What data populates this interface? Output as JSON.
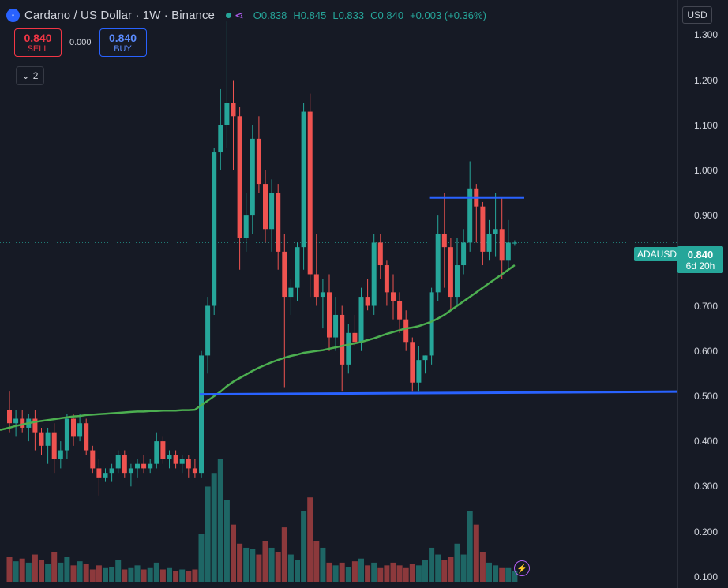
{
  "header": {
    "title": "Cardano / US Dollar · 1W · Binance",
    "ohlc": {
      "o_label": "O",
      "o": "0.838",
      "h_label": "H",
      "h": "0.845",
      "l_label": "L",
      "l": "0.833",
      "c_label": "C",
      "c": "0.840",
      "change": "+0.003 (+0.36%)"
    }
  },
  "trade": {
    "sell_price": "0.840",
    "sell_label": "SELL",
    "spread": "0.000",
    "buy_price": "0.840",
    "buy_label": "BUY"
  },
  "indicator_toggle": {
    "label": "2"
  },
  "currency": "USD",
  "symbol_tag": "ADAUSD",
  "price_label": {
    "price": "0.840",
    "countdown": "6d 20h"
  },
  "icons": {
    "symbol": "circle-logo-icon",
    "share": "share-icon",
    "bolt": "bolt-icon"
  },
  "colors": {
    "up": "#26a69a",
    "down": "#ef5350",
    "ma": "#4caf50",
    "lines": "#2962ff",
    "bg": "#161a25"
  },
  "chart_data": {
    "type": "candlestick",
    "price_ticks": [
      "1.300",
      "1.200",
      "1.100",
      "1.000",
      "0.900",
      "0.800",
      "0.700",
      "0.600",
      "0.500",
      "0.400",
      "0.300",
      "0.200",
      "0.100"
    ],
    "ylim": [
      0.075,
      1.36
    ],
    "current_price": 0.84,
    "candles": [
      [
        0.47,
        0.51,
        0.42,
        0.44
      ],
      [
        0.44,
        0.47,
        0.41,
        0.45
      ],
      [
        0.45,
        0.47,
        0.42,
        0.43
      ],
      [
        0.43,
        0.46,
        0.4,
        0.45
      ],
      [
        0.45,
        0.47,
        0.38,
        0.42
      ],
      [
        0.42,
        0.43,
        0.37,
        0.39
      ],
      [
        0.39,
        0.43,
        0.35,
        0.42
      ],
      [
        0.42,
        0.44,
        0.33,
        0.36
      ],
      [
        0.36,
        0.4,
        0.34,
        0.38
      ],
      [
        0.38,
        0.46,
        0.36,
        0.45
      ],
      [
        0.45,
        0.46,
        0.39,
        0.41
      ],
      [
        0.41,
        0.46,
        0.4,
        0.44
      ],
      [
        0.44,
        0.45,
        0.37,
        0.38
      ],
      [
        0.38,
        0.39,
        0.33,
        0.34
      ],
      [
        0.34,
        0.36,
        0.28,
        0.32
      ],
      [
        0.32,
        0.34,
        0.31,
        0.33
      ],
      [
        0.33,
        0.35,
        0.31,
        0.34
      ],
      [
        0.34,
        0.38,
        0.33,
        0.37
      ],
      [
        0.37,
        0.38,
        0.32,
        0.33
      ],
      [
        0.33,
        0.35,
        0.3,
        0.34
      ],
      [
        0.34,
        0.36,
        0.32,
        0.35
      ],
      [
        0.35,
        0.37,
        0.33,
        0.34
      ],
      [
        0.34,
        0.36,
        0.33,
        0.35
      ],
      [
        0.35,
        0.42,
        0.34,
        0.4
      ],
      [
        0.4,
        0.41,
        0.35,
        0.36
      ],
      [
        0.36,
        0.38,
        0.34,
        0.37
      ],
      [
        0.37,
        0.38,
        0.34,
        0.35
      ],
      [
        0.35,
        0.37,
        0.33,
        0.36
      ],
      [
        0.36,
        0.37,
        0.32,
        0.34
      ],
      [
        0.34,
        0.36,
        0.32,
        0.33
      ],
      [
        0.33,
        0.6,
        0.32,
        0.59
      ],
      [
        0.59,
        0.72,
        0.55,
        0.7
      ],
      [
        0.7,
        1.05,
        0.68,
        1.04
      ],
      [
        1.04,
        1.18,
        1.0,
        1.1
      ],
      [
        1.1,
        1.33,
        1.05,
        1.15
      ],
      [
        1.15,
        1.2,
        1.0,
        1.12
      ],
      [
        1.12,
        1.14,
        0.78,
        0.85
      ],
      [
        0.85,
        0.95,
        0.82,
        0.9
      ],
      [
        0.9,
        1.1,
        0.86,
        1.07
      ],
      [
        1.07,
        1.12,
        0.95,
        0.97
      ],
      [
        0.97,
        1.0,
        0.84,
        0.87
      ],
      [
        0.87,
        0.98,
        0.82,
        0.95
      ],
      [
        0.95,
        0.97,
        0.78,
        0.82
      ],
      [
        0.82,
        0.86,
        0.52,
        0.72
      ],
      [
        0.72,
        0.76,
        0.68,
        0.74
      ],
      [
        0.74,
        0.84,
        0.71,
        0.83
      ],
      [
        0.83,
        1.15,
        0.78,
        1.13
      ],
      [
        1.13,
        1.17,
        0.72,
        0.77
      ],
      [
        0.77,
        0.86,
        0.7,
        0.72
      ],
      [
        0.72,
        0.76,
        0.65,
        0.73
      ],
      [
        0.73,
        0.77,
        0.6,
        0.63
      ],
      [
        0.63,
        0.72,
        0.6,
        0.68
      ],
      [
        0.68,
        0.7,
        0.51,
        0.57
      ],
      [
        0.57,
        0.66,
        0.55,
        0.64
      ],
      [
        0.64,
        0.68,
        0.61,
        0.62
      ],
      [
        0.62,
        0.74,
        0.6,
        0.72
      ],
      [
        0.72,
        0.76,
        0.69,
        0.7
      ],
      [
        0.7,
        0.86,
        0.68,
        0.84
      ],
      [
        0.84,
        0.86,
        0.76,
        0.79
      ],
      [
        0.79,
        0.8,
        0.7,
        0.73
      ],
      [
        0.73,
        0.77,
        0.67,
        0.71
      ],
      [
        0.71,
        0.73,
        0.64,
        0.67
      ],
      [
        0.67,
        0.69,
        0.6,
        0.62
      ],
      [
        0.62,
        0.63,
        0.51,
        0.53
      ],
      [
        0.53,
        0.61,
        0.51,
        0.58
      ],
      [
        0.58,
        0.59,
        0.55,
        0.59
      ],
      [
        0.59,
        0.74,
        0.57,
        0.73
      ],
      [
        0.73,
        0.9,
        0.71,
        0.86
      ],
      [
        0.86,
        0.95,
        0.74,
        0.83
      ],
      [
        0.83,
        0.85,
        0.69,
        0.72
      ],
      [
        0.72,
        0.85,
        0.7,
        0.79
      ],
      [
        0.79,
        0.87,
        0.77,
        0.84
      ],
      [
        0.84,
        1.02,
        0.82,
        0.96
      ],
      [
        0.96,
        0.97,
        0.84,
        0.92
      ],
      [
        0.92,
        0.93,
        0.79,
        0.82
      ],
      [
        0.82,
        0.89,
        0.8,
        0.86
      ],
      [
        0.86,
        0.95,
        0.81,
        0.87
      ],
      [
        0.87,
        0.94,
        0.76,
        0.8
      ],
      [
        0.8,
        0.89,
        0.78,
        0.84
      ],
      [
        0.838,
        0.845,
        0.833,
        0.84
      ]
    ],
    "moving_average": [
      0.43,
      0.434,
      0.437,
      0.44,
      0.443,
      0.445,
      0.447,
      0.449,
      0.451,
      0.453,
      0.455,
      0.456,
      0.458,
      0.459,
      0.46,
      0.461,
      0.462,
      0.463,
      0.464,
      0.465,
      0.466,
      0.466,
      0.467,
      0.467,
      0.468,
      0.468,
      0.468,
      0.469,
      0.469,
      0.47,
      0.48,
      0.49,
      0.5,
      0.51,
      0.522,
      0.532,
      0.54,
      0.548,
      0.556,
      0.563,
      0.569,
      0.575,
      0.58,
      0.585,
      0.589,
      0.592,
      0.596,
      0.598,
      0.6,
      0.602,
      0.605,
      0.608,
      0.611,
      0.614,
      0.617,
      0.62,
      0.624,
      0.628,
      0.633,
      0.638,
      0.642,
      0.646,
      0.65,
      0.652,
      0.655,
      0.66,
      0.665,
      0.672,
      0.68,
      0.69,
      0.7,
      0.71,
      0.72,
      0.73,
      0.74,
      0.75,
      0.76,
      0.77,
      0.78,
      0.79
    ],
    "volume": [
      18,
      15,
      17,
      14,
      20,
      16,
      13,
      22,
      14,
      18,
      12,
      15,
      13,
      9,
      12,
      10,
      11,
      16,
      9,
      10,
      12,
      9,
      10,
      14,
      9,
      10,
      8,
      9,
      8,
      9,
      35,
      70,
      80,
      90,
      60,
      42,
      28,
      25,
      24,
      20,
      30,
      25,
      22,
      40,
      20,
      16,
      52,
      62,
      30,
      25,
      14,
      12,
      14,
      11,
      15,
      17,
      12,
      14,
      10,
      12,
      14,
      12,
      10,
      13,
      12,
      16,
      25,
      20,
      16,
      18,
      28,
      20,
      52,
      42,
      22,
      14,
      12,
      10,
      10,
      8
    ],
    "annotations": [
      {
        "type": "horizontal-segment",
        "price": 0.94,
        "from_index": 66,
        "to_index": 80
      },
      {
        "type": "horizontal-ray",
        "price": 0.504,
        "slope_to_price": 0.51,
        "from_index": 30
      }
    ]
  }
}
